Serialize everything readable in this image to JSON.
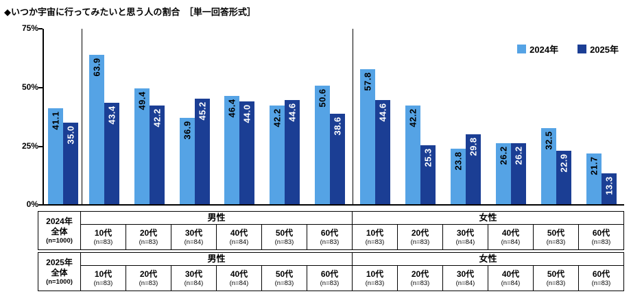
{
  "title": "◆いつか宇宙に行ってみたいと思う人の割合　［単一回答形式］",
  "y_axis": {
    "ticks": [
      {
        "label": "75%",
        "value": 75
      },
      {
        "label": "50%",
        "value": 50
      },
      {
        "label": "25%",
        "value": 25
      },
      {
        "label": "0%",
        "value": 0
      }
    ]
  },
  "legend": {
    "items": [
      {
        "label": "2024年",
        "color": "#55A3E5"
      },
      {
        "label": "2025年",
        "color": "#1B3E94"
      }
    ]
  },
  "chart_data": {
    "type": "bar",
    "title": "いつか宇宙に行ってみたいと思う人の割合［単一回答形式］",
    "categories": [
      "全体",
      "男性10代",
      "男性20代",
      "男性30代",
      "男性40代",
      "男性50代",
      "男性60代",
      "女性10代",
      "女性20代",
      "女性30代",
      "女性40代",
      "女性50代",
      "女性60代"
    ],
    "series": [
      {
        "name": "2024年",
        "color": "#55A3E5",
        "label_color": "#000000",
        "values": [
          41.1,
          63.9,
          49.4,
          36.9,
          46.4,
          42.2,
          50.6,
          57.8,
          42.2,
          23.8,
          26.2,
          32.5,
          21.7
        ]
      },
      {
        "name": "2025年",
        "color": "#1B3E94",
        "label_color": "#FFFFFF",
        "values": [
          35.0,
          43.4,
          42.2,
          45.2,
          44.0,
          44.6,
          38.6,
          44.6,
          25.3,
          29.8,
          26.2,
          22.9,
          13.3
        ]
      }
    ],
    "ylim": [
      0,
      75
    ],
    "ytick_labels": [
      "0%",
      "25%",
      "50%",
      "75%"
    ],
    "grid": false,
    "legend_position": "top-right",
    "value_label_format": "one-decimal-rotated",
    "group_separators_after_category_index": [
      0,
      6
    ]
  },
  "table": {
    "blocks": [
      {
        "year_label": "2024年",
        "total_label": "全体",
        "total_n": "(n=1000)",
        "gender_groups": [
          {
            "label": "男性",
            "ages": [
              {
                "label": "10代",
                "n": "(n=83)"
              },
              {
                "label": "20代",
                "n": "(n=83)"
              },
              {
                "label": "30代",
                "n": "(n=84)"
              },
              {
                "label": "40代",
                "n": "(n=84)"
              },
              {
                "label": "50代",
                "n": "(n=83)"
              },
              {
                "label": "60代",
                "n": "(n=83)"
              }
            ]
          },
          {
            "label": "女性",
            "ages": [
              {
                "label": "10代",
                "n": "(n=83)"
              },
              {
                "label": "20代",
                "n": "(n=83)"
              },
              {
                "label": "30代",
                "n": "(n=84)"
              },
              {
                "label": "40代",
                "n": "(n=84)"
              },
              {
                "label": "50代",
                "n": "(n=83)"
              },
              {
                "label": "60代",
                "n": "(n=83)"
              }
            ]
          }
        ]
      },
      {
        "year_label": "2025年",
        "total_label": "全体",
        "total_n": "(n=1000)",
        "gender_groups": [
          {
            "label": "男性",
            "ages": [
              {
                "label": "10代",
                "n": "(n=83)"
              },
              {
                "label": "20代",
                "n": "(n=83)"
              },
              {
                "label": "30代",
                "n": "(n=84)"
              },
              {
                "label": "40代",
                "n": "(n=84)"
              },
              {
                "label": "50代",
                "n": "(n=83)"
              },
              {
                "label": "60代",
                "n": "(n=83)"
              }
            ]
          },
          {
            "label": "女性",
            "ages": [
              {
                "label": "10代",
                "n": "(n=83)"
              },
              {
                "label": "20代",
                "n": "(n=83)"
              },
              {
                "label": "30代",
                "n": "(n=84)"
              },
              {
                "label": "40代",
                "n": "(n=84)"
              },
              {
                "label": "50代",
                "n": "(n=83)"
              },
              {
                "label": "60代",
                "n": "(n=83)"
              }
            ]
          }
        ]
      }
    ]
  }
}
